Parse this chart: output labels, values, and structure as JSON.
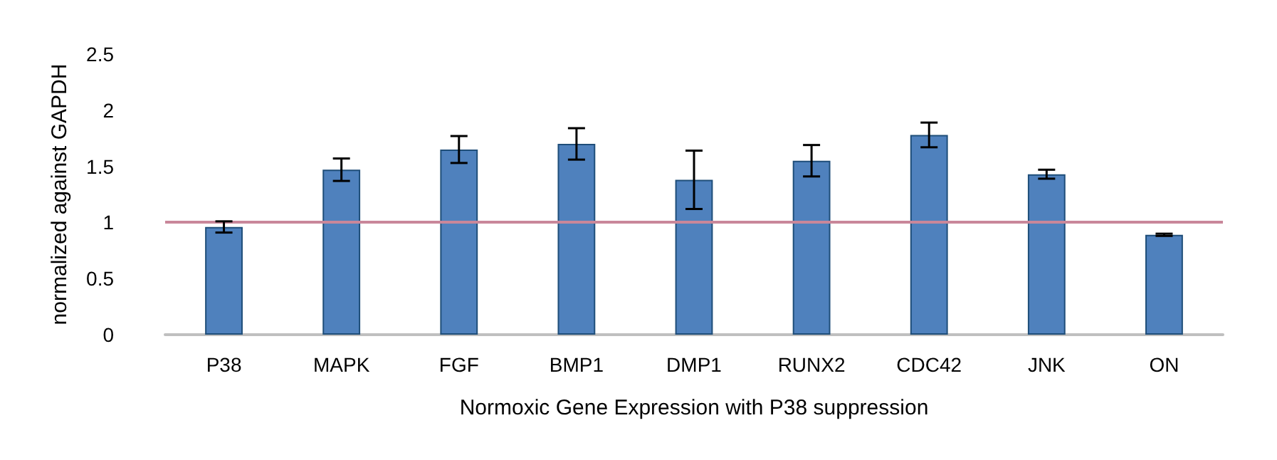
{
  "chart_data": {
    "type": "bar",
    "xlabel": "Normoxic Gene Expression with P38 suppression",
    "ylabel": "normalized against GAPDH",
    "categories": [
      "P38",
      "MAPK",
      "FGF",
      "BMP1",
      "DMP1",
      "RUNX2",
      "CDC42",
      "JNK",
      "ON"
    ],
    "values": [
      0.96,
      1.47,
      1.65,
      1.7,
      1.38,
      1.55,
      1.78,
      1.43,
      0.89
    ],
    "errors": [
      0.05,
      0.1,
      0.12,
      0.14,
      0.26,
      0.14,
      0.11,
      0.04,
      0.01
    ],
    "color": "#4f81bd",
    "ylim": [
      0,
      2.5
    ],
    "yticks": [
      0,
      0.5,
      1,
      1.5,
      2,
      2.5
    ],
    "grid": false,
    "ref_lines": [
      {
        "axis": "y",
        "value": 1,
        "color": "#c9879a"
      }
    ]
  }
}
